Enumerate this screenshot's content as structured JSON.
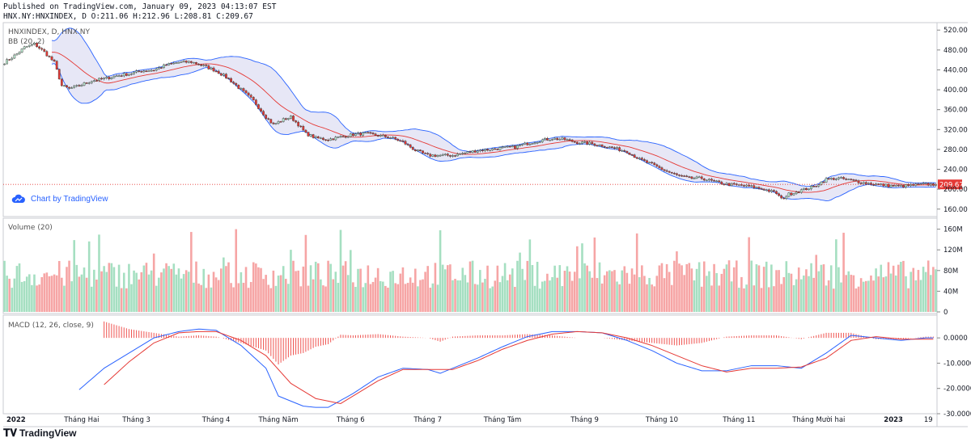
{
  "header": {
    "published": "Published on TradingView.com, January 09, 2023 04:13:07 EST",
    "symbol_line": "HNX.NY:HNXINDEX, D O:211.06 H:212.96 L:208.81 C:209.67"
  },
  "chart_link": "Chart by TradingView",
  "brand": "TradingView",
  "chart_data": [
    {
      "type": "candlestick",
      "panel": "price",
      "legend": [
        "HNXINDEX, D, HNX.NY",
        "BB (20, 2)"
      ],
      "y_ticks": [
        520,
        480,
        440,
        400,
        360,
        320,
        280,
        240,
        200,
        160
      ],
      "y_tick_labels": [
        "520.00",
        "480.00",
        "440.00",
        "400.00",
        "360.00",
        "320.00",
        "280.00",
        "240.00",
        "200.00",
        "160.00"
      ],
      "ylim": [
        145,
        535
      ],
      "last_price_label": "209.67",
      "last_price": 209.67,
      "x_labels": [
        "2022",
        "Tháng Hai",
        "Tháng 3",
        "Tháng 4",
        "Tháng Năm",
        "Tháng 6",
        "Tháng 7",
        "Tháng Tám",
        "Tháng 9",
        "Tháng 10",
        "Tháng 11",
        "Tháng Mười hai",
        "2023",
        "19"
      ],
      "close_anchors": [
        [
          0,
          455
        ],
        [
          5,
          472
        ],
        [
          8,
          485
        ],
        [
          12,
          492
        ],
        [
          16,
          476
        ],
        [
          20,
          455
        ],
        [
          23,
          408
        ],
        [
          26,
          402
        ],
        [
          30,
          408
        ],
        [
          35,
          418
        ],
        [
          40,
          422
        ],
        [
          45,
          428
        ],
        [
          50,
          432
        ],
        [
          55,
          438
        ],
        [
          60,
          440
        ],
        [
          65,
          450
        ],
        [
          70,
          455
        ],
        [
          75,
          456
        ],
        [
          80,
          448
        ],
        [
          85,
          438
        ],
        [
          90,
          422
        ],
        [
          95,
          400
        ],
        [
          100,
          378
        ],
        [
          105,
          345
        ],
        [
          108,
          330
        ],
        [
          112,
          340
        ],
        [
          115,
          345
        ],
        [
          118,
          330
        ],
        [
          121,
          312
        ],
        [
          125,
          303
        ],
        [
          130,
          300
        ],
        [
          135,
          305
        ],
        [
          140,
          310
        ],
        [
          145,
          312
        ],
        [
          150,
          308
        ],
        [
          155,
          304
        ],
        [
          160,
          295
        ],
        [
          165,
          278
        ],
        [
          170,
          268
        ],
        [
          175,
          268
        ],
        [
          180,
          268
        ],
        [
          185,
          273
        ],
        [
          190,
          278
        ],
        [
          195,
          280
        ],
        [
          200,
          283
        ],
        [
          205,
          285
        ],
        [
          210,
          292
        ],
        [
          215,
          298
        ],
        [
          220,
          302
        ],
        [
          225,
          300
        ],
        [
          230,
          294
        ],
        [
          235,
          292
        ],
        [
          240,
          288
        ],
        [
          245,
          282
        ],
        [
          250,
          276
        ],
        [
          255,
          260
        ],
        [
          260,
          250
        ],
        [
          265,
          238
        ],
        [
          270,
          228
        ],
        [
          275,
          222
        ],
        [
          280,
          222
        ],
        [
          285,
          215
        ],
        [
          290,
          210
        ],
        [
          295,
          208
        ],
        [
          300,
          205
        ],
        [
          305,
          200
        ],
        [
          310,
          192
        ],
        [
          312,
          180
        ],
        [
          315,
          190
        ],
        [
          320,
          198
        ],
        [
          325,
          205
        ],
        [
          330,
          220
        ],
        [
          335,
          222
        ],
        [
          340,
          218
        ],
        [
          345,
          213
        ],
        [
          350,
          210
        ],
        [
          355,
          207
        ],
        [
          360,
          206
        ],
        [
          365,
          208
        ],
        [
          370,
          210
        ],
        [
          373,
          209.67
        ]
      ],
      "volume": {
        "label": "Volume (20)",
        "y_ticks": [
          160,
          120,
          80,
          40,
          0
        ],
        "y_tick_labels": [
          "160M",
          "120M",
          "80M",
          "40M",
          "0"
        ],
        "ylim": [
          0,
          175
        ]
      },
      "macd": {
        "label": "MACD (12, 26, close, 9)",
        "y_ticks": [
          0,
          -10,
          -20,
          -30
        ],
        "y_tick_labels": [
          "0.0000",
          "-10.0000",
          "-20.0000",
          "-30.0000"
        ],
        "ylim": [
          -30,
          9
        ],
        "macd_anchors": [
          [
            30,
            -20.5
          ],
          [
            40,
            -12
          ],
          [
            50,
            -6
          ],
          [
            60,
            0
          ],
          [
            70,
            2.5
          ],
          [
            78,
            3.5
          ],
          [
            85,
            3
          ],
          [
            95,
            -3
          ],
          [
            105,
            -12
          ],
          [
            110,
            -23
          ],
          [
            115,
            -25
          ],
          [
            120,
            -27
          ],
          [
            125,
            -27.5
          ],
          [
            130,
            -27.5
          ],
          [
            140,
            -22
          ],
          [
            150,
            -15.5
          ],
          [
            160,
            -12
          ],
          [
            170,
            -12.5
          ],
          [
            175,
            -14
          ],
          [
            180,
            -12
          ],
          [
            190,
            -8
          ],
          [
            200,
            -3.5
          ],
          [
            210,
            0.5
          ],
          [
            220,
            2.5
          ],
          [
            230,
            2.5
          ],
          [
            240,
            2
          ],
          [
            250,
            -1
          ],
          [
            260,
            -5
          ],
          [
            270,
            -10
          ],
          [
            280,
            -13
          ],
          [
            290,
            -13
          ],
          [
            300,
            -11
          ],
          [
            310,
            -11
          ],
          [
            320,
            -12
          ],
          [
            330,
            -6
          ],
          [
            340,
            1
          ],
          [
            350,
            0
          ],
          [
            360,
            -1
          ],
          [
            370,
            0
          ]
        ],
        "signal_anchors": [
          [
            40,
            -18.5
          ],
          [
            50,
            -9.5
          ],
          [
            60,
            -2
          ],
          [
            70,
            2
          ],
          [
            78,
            2.5
          ],
          [
            85,
            2.5
          ],
          [
            95,
            -1
          ],
          [
            105,
            -7
          ],
          [
            115,
            -18
          ],
          [
            125,
            -24
          ],
          [
            135,
            -26
          ],
          [
            140,
            -23
          ],
          [
            150,
            -17
          ],
          [
            160,
            -12.5
          ],
          [
            170,
            -12.5
          ],
          [
            180,
            -12.5
          ],
          [
            190,
            -9
          ],
          [
            200,
            -4.5
          ],
          [
            210,
            -1
          ],
          [
            220,
            1.5
          ],
          [
            230,
            2.5
          ],
          [
            240,
            2
          ],
          [
            250,
            0
          ],
          [
            260,
            -3
          ],
          [
            270,
            -7
          ],
          [
            280,
            -11
          ],
          [
            290,
            -13.5
          ],
          [
            300,
            -12
          ],
          [
            310,
            -12
          ],
          [
            320,
            -11.5
          ],
          [
            330,
            -8
          ],
          [
            340,
            -1
          ],
          [
            350,
            0.5
          ],
          [
            360,
            -0.5
          ],
          [
            370,
            -0.5
          ]
        ]
      }
    }
  ]
}
